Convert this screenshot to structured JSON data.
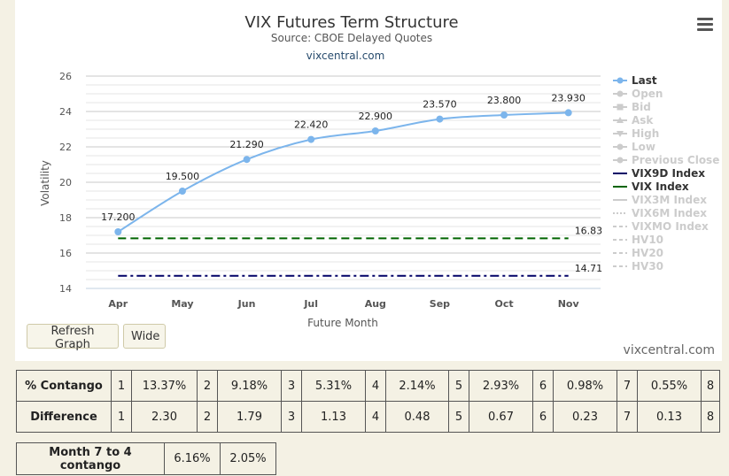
{
  "chart_data": {
    "type": "line",
    "title": "VIX Futures Term Structure",
    "subtitle": "Source: CBOE Delayed Quotes",
    "credit": "vixcentral.com",
    "xlabel": "Future Month",
    "ylabel": "Volatility",
    "categories": [
      "Apr",
      "May",
      "Jun",
      "Jul",
      "Aug",
      "Sep",
      "Oct",
      "Nov"
    ],
    "ylim": [
      14,
      26
    ],
    "yticks": [
      14,
      16,
      18,
      20,
      22,
      24,
      26
    ],
    "grid": true,
    "series": [
      {
        "name": "Last",
        "values": [
          17.2,
          19.5,
          21.29,
          22.42,
          22.9,
          23.57,
          23.8,
          23.93
        ],
        "labels": [
          "17.200",
          "19.500",
          "21.290",
          "22.420",
          "22.900",
          "23.570",
          "23.800",
          "23.930"
        ],
        "color": "#7cb5ec"
      },
      {
        "name": "VIX9D Index",
        "constant": 14.71,
        "label": "14.71",
        "color": "#000066",
        "dash": "dash-dot"
      },
      {
        "name": "VIX Index",
        "constant": 16.83,
        "label": "16.83",
        "color": "#006400",
        "dash": "dash"
      }
    ],
    "legend_position": "right",
    "legend": [
      {
        "name": "Last",
        "active": true,
        "color": "#7cb5ec",
        "symbol": "line-dot"
      },
      {
        "name": "Open",
        "active": false,
        "symbol": "line-dot"
      },
      {
        "name": "Bid",
        "active": false,
        "symbol": "line-square"
      },
      {
        "name": "Ask",
        "active": false,
        "symbol": "line-triangle"
      },
      {
        "name": "High",
        "active": false,
        "symbol": "line-triangle-down"
      },
      {
        "name": "Low",
        "active": false,
        "symbol": "line-dot"
      },
      {
        "name": "Previous Close",
        "active": false,
        "symbol": "line-dot"
      },
      {
        "name": "VIX9D Index",
        "active": true,
        "color": "#000066",
        "symbol": "line"
      },
      {
        "name": "VIX Index",
        "active": true,
        "color": "#006400",
        "symbol": "line"
      },
      {
        "name": "VIX3M Index",
        "active": false,
        "symbol": "line"
      },
      {
        "name": "VIX6M Index",
        "active": false,
        "symbol": "dotted"
      },
      {
        "name": "VIXMO Index",
        "active": false,
        "symbol": "dash"
      },
      {
        "name": "HV10",
        "active": false,
        "symbol": "dash"
      },
      {
        "name": "HV20",
        "active": false,
        "symbol": "dash"
      },
      {
        "name": "HV30",
        "active": false,
        "symbol": "dash"
      }
    ]
  },
  "controls": {
    "refresh_label": "Refresh Graph",
    "wide_label": "Wide",
    "menu_icon": "hamburger-menu-icon"
  },
  "watermark": "vixcentral.com",
  "contango_table": {
    "row1_label": "% Contango",
    "row2_label": "Difference",
    "months": [
      "1",
      "2",
      "3",
      "4",
      "5",
      "6",
      "7",
      "8"
    ],
    "contango": [
      "13.37%",
      "9.18%",
      "5.31%",
      "2.14%",
      "2.93%",
      "0.98%",
      "0.55%"
    ],
    "difference": [
      "2.30",
      "1.79",
      "1.13",
      "0.48",
      "0.67",
      "0.23",
      "0.13"
    ]
  },
  "summary_table": {
    "label": "Month 7 to 4 contango",
    "values": [
      "6.16%",
      "2.05%"
    ]
  },
  "colors": {
    "background": "#f4f1e4",
    "last_series": "#7cb5ec",
    "vix9d": "#000066",
    "vix": "#006400",
    "legend_inactive": "#cccccc"
  }
}
